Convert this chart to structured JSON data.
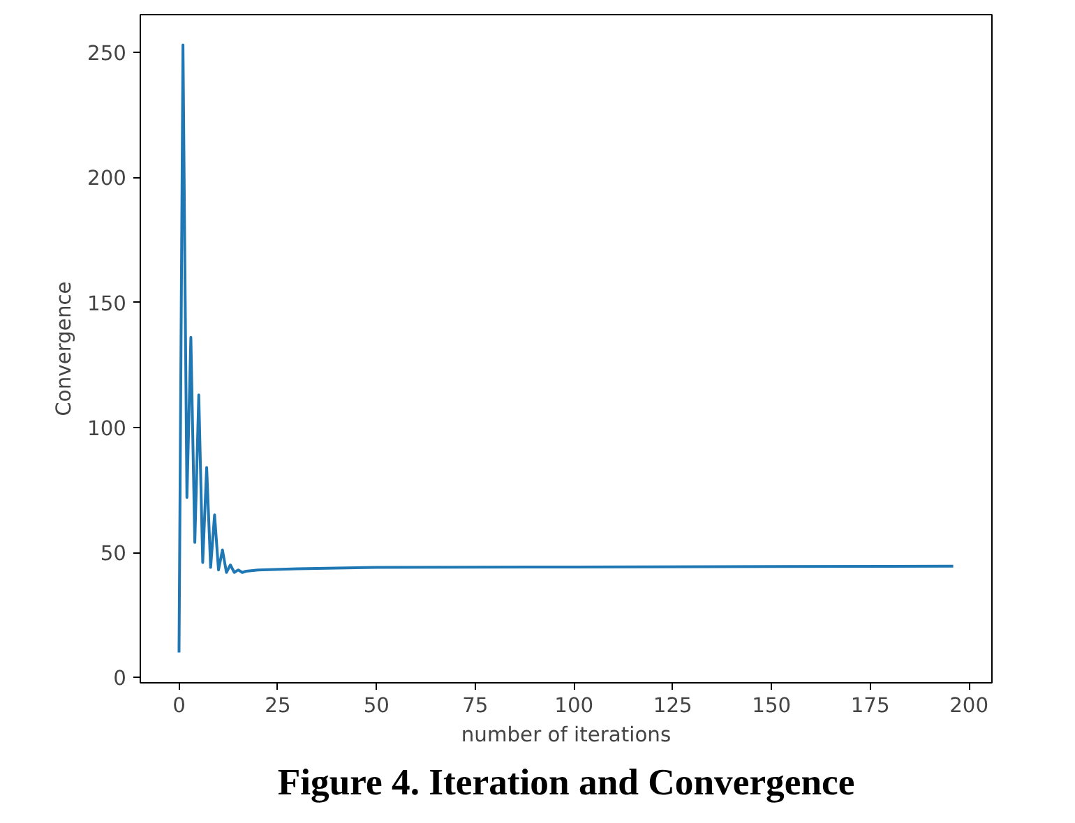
{
  "chart_data": {
    "type": "line",
    "title": "Figure 4. Iteration and Convergence",
    "xlabel": "number of iterations",
    "ylabel": "Convergence",
    "x": [
      0,
      1,
      2,
      3,
      4,
      5,
      6,
      7,
      8,
      9,
      10,
      11,
      12,
      13,
      14,
      15,
      16,
      17,
      20,
      30,
      50,
      100,
      150,
      196
    ],
    "series": [
      {
        "color": "#1f77b4",
        "values": [
          10,
          253,
          72,
          136,
          54,
          113,
          46,
          84,
          44,
          65,
          43,
          51,
          42,
          45,
          42,
          43,
          42,
          42.5,
          43,
          43.5,
          44,
          44.2,
          44.4,
          44.5
        ]
      }
    ],
    "xlim": [
      -9.8,
      205.8
    ],
    "ylim": [
      -2.15,
      265.15
    ],
    "xticks": [
      0,
      25,
      50,
      75,
      100,
      125,
      150,
      175,
      200
    ],
    "yticks": [
      0,
      50,
      100,
      150,
      200,
      250
    ],
    "grid": false
  }
}
